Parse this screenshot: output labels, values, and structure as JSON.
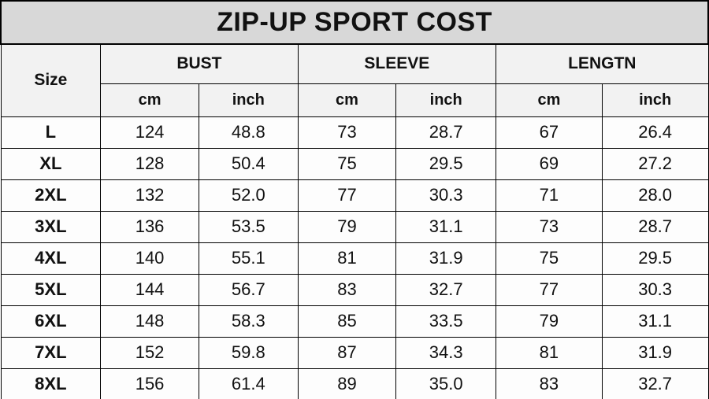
{
  "title": "ZIP-UP SPORT COST",
  "colors": {
    "title_bg": "#d8d8d8",
    "header_bg": "#f2f2f2",
    "cell_bg": "#fdfdfd",
    "border": "#000000",
    "text": "#111111"
  },
  "table": {
    "size_header": "Size",
    "groups": [
      {
        "label": "BUST"
      },
      {
        "label": "SLEEVE"
      },
      {
        "label": "LENGTN"
      }
    ],
    "units": [
      "cm",
      "inch",
      "cm",
      "inch",
      "cm",
      "inch"
    ],
    "rows": [
      {
        "size": "L",
        "values": [
          "124",
          "48.8",
          "73",
          "28.7",
          "67",
          "26.4"
        ]
      },
      {
        "size": "XL",
        "values": [
          "128",
          "50.4",
          "75",
          "29.5",
          "69",
          "27.2"
        ]
      },
      {
        "size": "2XL",
        "values": [
          "132",
          "52.0",
          "77",
          "30.3",
          "71",
          "28.0"
        ]
      },
      {
        "size": "3XL",
        "values": [
          "136",
          "53.5",
          "79",
          "31.1",
          "73",
          "28.7"
        ]
      },
      {
        "size": "4XL",
        "values": [
          "140",
          "55.1",
          "81",
          "31.9",
          "75",
          "29.5"
        ]
      },
      {
        "size": "5XL",
        "values": [
          "144",
          "56.7",
          "83",
          "32.7",
          "77",
          "30.3"
        ]
      },
      {
        "size": "6XL",
        "values": [
          "148",
          "58.3",
          "85",
          "33.5",
          "79",
          "31.1"
        ]
      },
      {
        "size": "7XL",
        "values": [
          "152",
          "59.8",
          "87",
          "34.3",
          "81",
          "31.9"
        ]
      },
      {
        "size": "8XL",
        "values": [
          "156",
          "61.4",
          "89",
          "35.0",
          "83",
          "32.7"
        ]
      }
    ]
  },
  "chart_data": {
    "type": "table",
    "title": "ZIP-UP SPORT COST",
    "columns": [
      "Size",
      "BUST cm",
      "BUST inch",
      "SLEEVE cm",
      "SLEEVE inch",
      "LENGTN cm",
      "LENGTN inch"
    ],
    "rows": [
      [
        "L",
        124,
        48.8,
        73,
        28.7,
        67,
        26.4
      ],
      [
        "XL",
        128,
        50.4,
        75,
        29.5,
        69,
        27.2
      ],
      [
        "2XL",
        132,
        52.0,
        77,
        30.3,
        71,
        28.0
      ],
      [
        "3XL",
        136,
        53.5,
        79,
        31.1,
        73,
        28.7
      ],
      [
        "4XL",
        140,
        55.1,
        81,
        31.9,
        75,
        29.5
      ],
      [
        "5XL",
        144,
        56.7,
        83,
        32.7,
        77,
        30.3
      ],
      [
        "6XL",
        148,
        58.3,
        85,
        33.5,
        79,
        31.1
      ],
      [
        "7XL",
        152,
        59.8,
        87,
        34.3,
        81,
        31.9
      ],
      [
        "8XL",
        156,
        61.4,
        89,
        35.0,
        83,
        32.7
      ]
    ]
  }
}
